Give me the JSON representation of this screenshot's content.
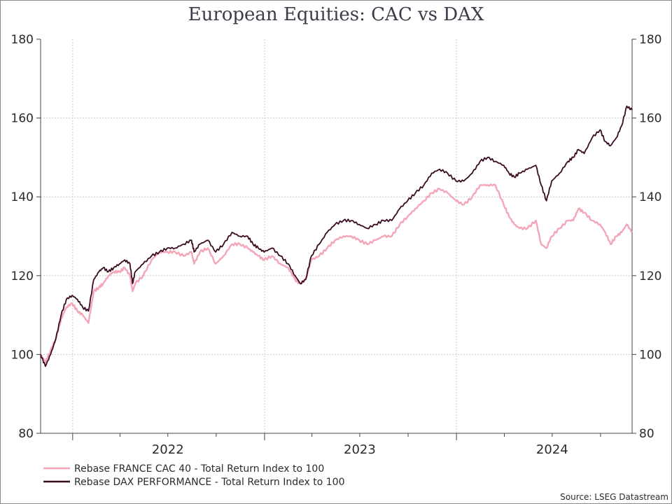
{
  "chart_data": {
    "type": "line",
    "title": "European Equities: CAC vs DAX",
    "ylim": [
      80,
      180
    ],
    "yticks": [
      80,
      100,
      120,
      140,
      160,
      180
    ],
    "x_range": [
      "2021-11-01",
      "2024-11-30"
    ],
    "x_labels": [
      {
        "label": "2022",
        "date": "2022-07-01"
      },
      {
        "label": "2023",
        "date": "2023-07-01"
      },
      {
        "label": "2024",
        "date": "2024-07-01"
      }
    ],
    "year_boundaries": [
      "2022-01-01",
      "2023-01-01",
      "2024-01-01"
    ],
    "quarter_ticks": [
      "2022-04-01",
      "2022-07-01",
      "2022-10-01",
      "2023-04-01",
      "2023-07-01",
      "2023-10-01",
      "2024-04-01",
      "2024-07-01",
      "2024-10-01"
    ],
    "y_axis_right": true,
    "grid": true,
    "legend_position": "bottom-left",
    "source": "Source: LSEG Datastream",
    "series": [
      {
        "name": "Rebase FRANCE CAC 40 - Total Return Index to 100",
        "color": "#f4a6b8",
        "points": [
          [
            "2021-11-01",
            100
          ],
          [
            "2021-11-10",
            98
          ],
          [
            "2021-11-20",
            101
          ],
          [
            "2021-11-30",
            104
          ],
          [
            "2021-12-10",
            109
          ],
          [
            "2021-12-20",
            112
          ],
          [
            "2021-12-31",
            113
          ],
          [
            "2022-01-10",
            111
          ],
          [
            "2022-01-20",
            110
          ],
          [
            "2022-01-31",
            108
          ],
          [
            "2022-02-10",
            116
          ],
          [
            "2022-02-20",
            117
          ],
          [
            "2022-02-28",
            118
          ],
          [
            "2022-03-10",
            120
          ],
          [
            "2022-03-20",
            121
          ],
          [
            "2022-03-31",
            121
          ],
          [
            "2022-04-10",
            122
          ],
          [
            "2022-04-20",
            120
          ],
          [
            "2022-04-25",
            116
          ],
          [
            "2022-04-30",
            118
          ],
          [
            "2022-05-15",
            120
          ],
          [
            "2022-05-31",
            124
          ],
          [
            "2022-06-15",
            126
          ],
          [
            "2022-06-30",
            126
          ],
          [
            "2022-07-15",
            126
          ],
          [
            "2022-07-31",
            125
          ],
          [
            "2022-08-15",
            126
          ],
          [
            "2022-08-20",
            123
          ],
          [
            "2022-08-31",
            126
          ],
          [
            "2022-09-15",
            127
          ],
          [
            "2022-09-30",
            123
          ],
          [
            "2022-10-15",
            125
          ],
          [
            "2022-10-31",
            128
          ],
          [
            "2022-11-15",
            128
          ],
          [
            "2022-11-30",
            127
          ],
          [
            "2022-12-10",
            126
          ],
          [
            "2022-12-20",
            125
          ],
          [
            "2022-12-31",
            124
          ],
          [
            "2023-01-15",
            125
          ],
          [
            "2023-01-31",
            123
          ],
          [
            "2023-02-15",
            122
          ],
          [
            "2023-02-28",
            119
          ],
          [
            "2023-03-10",
            118
          ],
          [
            "2023-03-20",
            119
          ],
          [
            "2023-03-31",
            124
          ],
          [
            "2023-04-15",
            125
          ],
          [
            "2023-04-30",
            127
          ],
          [
            "2023-05-15",
            129
          ],
          [
            "2023-05-31",
            130
          ],
          [
            "2023-06-15",
            130
          ],
          [
            "2023-06-30",
            129
          ],
          [
            "2023-07-15",
            128
          ],
          [
            "2023-07-31",
            129
          ],
          [
            "2023-08-15",
            130
          ],
          [
            "2023-08-31",
            130
          ],
          [
            "2023-09-15",
            133
          ],
          [
            "2023-09-30",
            135
          ],
          [
            "2023-10-15",
            137
          ],
          [
            "2023-10-31",
            139
          ],
          [
            "2023-11-15",
            141
          ],
          [
            "2023-11-30",
            142
          ],
          [
            "2023-12-15",
            141
          ],
          [
            "2023-12-31",
            139
          ],
          [
            "2024-01-15",
            138
          ],
          [
            "2024-01-31",
            140
          ],
          [
            "2024-02-15",
            143
          ],
          [
            "2024-02-29",
            143
          ],
          [
            "2024-03-15",
            143
          ],
          [
            "2024-03-31",
            138
          ],
          [
            "2024-04-10",
            135
          ],
          [
            "2024-04-20",
            133
          ],
          [
            "2024-04-30",
            132
          ],
          [
            "2024-05-15",
            132
          ],
          [
            "2024-05-31",
            134
          ],
          [
            "2024-06-10",
            128
          ],
          [
            "2024-06-20",
            127
          ],
          [
            "2024-06-30",
            130
          ],
          [
            "2024-07-15",
            132
          ],
          [
            "2024-07-31",
            134
          ],
          [
            "2024-08-10",
            134
          ],
          [
            "2024-08-20",
            137
          ],
          [
            "2024-08-31",
            136
          ],
          [
            "2024-09-15",
            134
          ],
          [
            "2024-09-30",
            133
          ],
          [
            "2024-10-10",
            131
          ],
          [
            "2024-10-20",
            128
          ],
          [
            "2024-10-31",
            130
          ],
          [
            "2024-11-10",
            131
          ],
          [
            "2024-11-20",
            133
          ],
          [
            "2024-11-30",
            131
          ]
        ]
      },
      {
        "name": "Rebase DAX PERFORMANCE - Total Return Index to 100",
        "color": "#3a0b22",
        "points": [
          [
            "2021-11-01",
            100
          ],
          [
            "2021-11-10",
            97
          ],
          [
            "2021-11-20",
            100
          ],
          [
            "2021-11-30",
            104
          ],
          [
            "2021-12-10",
            110
          ],
          [
            "2021-12-20",
            114
          ],
          [
            "2021-12-31",
            115
          ],
          [
            "2022-01-10",
            114
          ],
          [
            "2022-01-20",
            112
          ],
          [
            "2022-01-31",
            111
          ],
          [
            "2022-02-10",
            119
          ],
          [
            "2022-02-20",
            121
          ],
          [
            "2022-02-28",
            122
          ],
          [
            "2022-03-10",
            121
          ],
          [
            "2022-03-20",
            122
          ],
          [
            "2022-03-31",
            123
          ],
          [
            "2022-04-10",
            124
          ],
          [
            "2022-04-20",
            123
          ],
          [
            "2022-04-25",
            118
          ],
          [
            "2022-04-30",
            121
          ],
          [
            "2022-05-15",
            123
          ],
          [
            "2022-05-31",
            125
          ],
          [
            "2022-06-15",
            126
          ],
          [
            "2022-06-30",
            127
          ],
          [
            "2022-07-15",
            127
          ],
          [
            "2022-07-31",
            128
          ],
          [
            "2022-08-15",
            129
          ],
          [
            "2022-08-20",
            126
          ],
          [
            "2022-08-31",
            128
          ],
          [
            "2022-09-15",
            129
          ],
          [
            "2022-09-30",
            126
          ],
          [
            "2022-10-15",
            128
          ],
          [
            "2022-10-31",
            131
          ],
          [
            "2022-11-15",
            130
          ],
          [
            "2022-11-30",
            130
          ],
          [
            "2022-12-10",
            128
          ],
          [
            "2022-12-20",
            127
          ],
          [
            "2022-12-31",
            126
          ],
          [
            "2023-01-15",
            127
          ],
          [
            "2023-01-31",
            125
          ],
          [
            "2023-02-15",
            123
          ],
          [
            "2023-02-28",
            120
          ],
          [
            "2023-03-10",
            118
          ],
          [
            "2023-03-20",
            119
          ],
          [
            "2023-03-31",
            125
          ],
          [
            "2023-04-15",
            128
          ],
          [
            "2023-04-30",
            131
          ],
          [
            "2023-05-15",
            133
          ],
          [
            "2023-05-31",
            134
          ],
          [
            "2023-06-15",
            134
          ],
          [
            "2023-06-30",
            133
          ],
          [
            "2023-07-15",
            132
          ],
          [
            "2023-07-31",
            133
          ],
          [
            "2023-08-15",
            134
          ],
          [
            "2023-08-31",
            134
          ],
          [
            "2023-09-15",
            137
          ],
          [
            "2023-09-30",
            139
          ],
          [
            "2023-10-15",
            141
          ],
          [
            "2023-10-31",
            143
          ],
          [
            "2023-11-15",
            146
          ],
          [
            "2023-11-30",
            147
          ],
          [
            "2023-12-15",
            146
          ],
          [
            "2023-12-31",
            144
          ],
          [
            "2024-01-15",
            144
          ],
          [
            "2024-01-31",
            146
          ],
          [
            "2024-02-15",
            149
          ],
          [
            "2024-02-29",
            150
          ],
          [
            "2024-03-15",
            149
          ],
          [
            "2024-03-31",
            148
          ],
          [
            "2024-04-10",
            146
          ],
          [
            "2024-04-20",
            145
          ],
          [
            "2024-04-30",
            146
          ],
          [
            "2024-05-15",
            147
          ],
          [
            "2024-05-31",
            148
          ],
          [
            "2024-06-10",
            143
          ],
          [
            "2024-06-20",
            139
          ],
          [
            "2024-06-30",
            144
          ],
          [
            "2024-07-15",
            146
          ],
          [
            "2024-07-31",
            149
          ],
          [
            "2024-08-10",
            150
          ],
          [
            "2024-08-20",
            152
          ],
          [
            "2024-08-31",
            151
          ],
          [
            "2024-09-15",
            155
          ],
          [
            "2024-09-30",
            157
          ],
          [
            "2024-10-10",
            154
          ],
          [
            "2024-10-20",
            153
          ],
          [
            "2024-10-31",
            155
          ],
          [
            "2024-11-10",
            158
          ],
          [
            "2024-11-20",
            163
          ],
          [
            "2024-11-30",
            162
          ]
        ]
      }
    ]
  }
}
